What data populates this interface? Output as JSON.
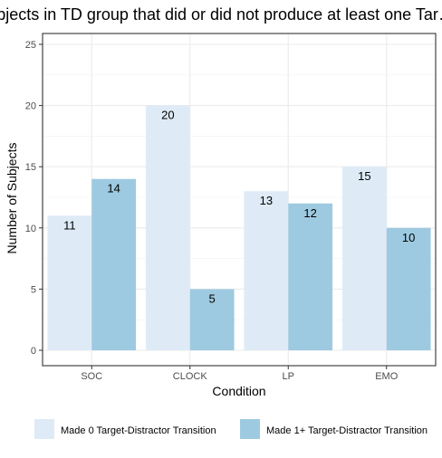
{
  "chart_data": {
    "type": "bar",
    "title": "…bjects in TD group that did or did not produce at least one Tar…",
    "xlabel": "Condition",
    "ylabel": "Number of Subjects",
    "categories": [
      "SOC",
      "CLOCK",
      "LP",
      "EMO"
    ],
    "ylim": [
      0,
      26
    ],
    "yticks": [
      0,
      5,
      10,
      15,
      20,
      25
    ],
    "grid": true,
    "legend_position": "bottom",
    "series": [
      {
        "name": "Made 0 Target-Distractor Transition",
        "values": [
          11,
          20,
          13,
          15
        ],
        "color": "#deebf7"
      },
      {
        "name": "Made 1+ Target-Distractor Transition",
        "values": [
          14,
          5,
          12,
          10
        ],
        "color": "#9ecae1"
      }
    ]
  }
}
